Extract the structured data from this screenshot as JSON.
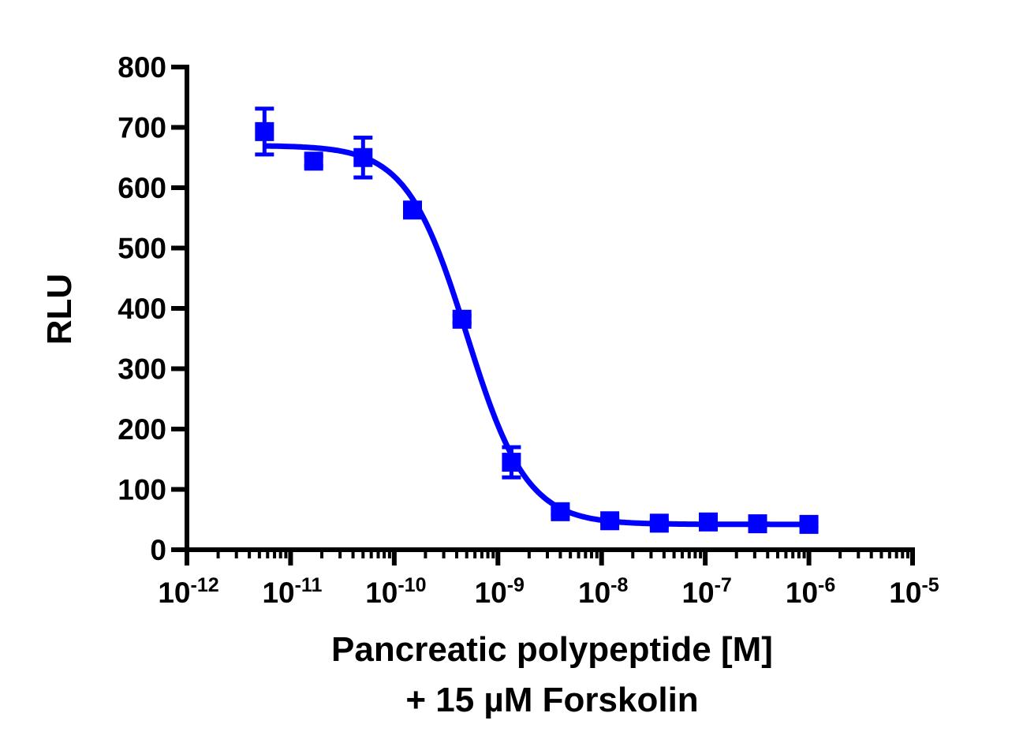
{
  "chart_data": {
    "type": "scatter",
    "title": "",
    "ylabel": "RLU",
    "xlabel": [
      "Pancreatic polypeptide [M]",
      "+ 15 µM Forskolin"
    ],
    "xscale": "log",
    "xlim": [
      1e-12,
      1e-05
    ],
    "ylim": [
      0,
      800
    ],
    "yticks": [
      0,
      100,
      200,
      300,
      400,
      500,
      600,
      700,
      800
    ],
    "xticks": [
      {
        "value": 1e-12,
        "base": "10",
        "exp": "-12"
      },
      {
        "value": 1e-11,
        "base": "10",
        "exp": "-11"
      },
      {
        "value": 1e-10,
        "base": "10",
        "exp": "-10"
      },
      {
        "value": 1e-09,
        "base": "10",
        "exp": "-9"
      },
      {
        "value": 1e-08,
        "base": "10",
        "exp": "-8"
      },
      {
        "value": 1e-07,
        "base": "10",
        "exp": "-7"
      },
      {
        "value": 1e-06,
        "base": "10",
        "exp": "-6"
      },
      {
        "value": 1e-05,
        "base": "10",
        "exp": "-5"
      }
    ],
    "grid": false,
    "color": "#0000ff",
    "marker": "square",
    "points": [
      {
        "x": 5.6e-12,
        "y": 693,
        "err": 38
      },
      {
        "x": 1.67e-11,
        "y": 644,
        "err": 8
      },
      {
        "x": 5e-11,
        "y": 650,
        "err": 33
      },
      {
        "x": 1.5e-10,
        "y": 563,
        "err": 10
      },
      {
        "x": 4.5e-10,
        "y": 382,
        "err": 6
      },
      {
        "x": 1.35e-09,
        "y": 145,
        "err": 25
      },
      {
        "x": 4e-09,
        "y": 63,
        "err": 5
      },
      {
        "x": 1.2e-08,
        "y": 48,
        "err": 4
      },
      {
        "x": 3.6e-08,
        "y": 44,
        "err": 4
      },
      {
        "x": 1.07e-07,
        "y": 46,
        "err": 4
      },
      {
        "x": 3.2e-07,
        "y": 43,
        "err": 4
      },
      {
        "x": 1e-06,
        "y": 42,
        "err": 4
      }
    ],
    "fit": {
      "model": "4PL",
      "top": 670,
      "bottom": 42,
      "logIC50": -9.3,
      "hill": 1.5
    }
  }
}
